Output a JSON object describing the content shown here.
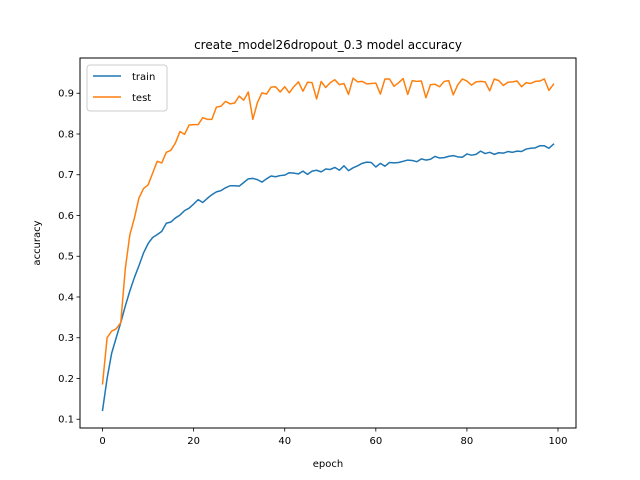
{
  "chart_data": {
    "type": "line",
    "title": "create_model26dropout_0.3 model accuracy",
    "xlabel": "epoch",
    "ylabel": "accuracy",
    "xlim": [
      -4.95,
      103.95
    ],
    "ylim": [
      0.0785,
      0.9865
    ],
    "xticks": [
      0,
      20,
      40,
      60,
      80,
      100
    ],
    "yticks": [
      0.1,
      0.2,
      0.3,
      0.4,
      0.5,
      0.6,
      0.7,
      0.8,
      0.9
    ],
    "grid": false,
    "legend_position": "top-left",
    "series": [
      {
        "name": "train",
        "color": "#1f77b4",
        "values": [
          0.122,
          0.2,
          0.262,
          0.3,
          0.337,
          0.378,
          0.415,
          0.448,
          0.477,
          0.508,
          0.531,
          0.546,
          0.553,
          0.561,
          0.581,
          0.584,
          0.594,
          0.601,
          0.612,
          0.618,
          0.628,
          0.639,
          0.632,
          0.642,
          0.651,
          0.658,
          0.661,
          0.668,
          0.673,
          0.673,
          0.672,
          0.681,
          0.69,
          0.691,
          0.688,
          0.682,
          0.69,
          0.697,
          0.695,
          0.698,
          0.699,
          0.705,
          0.704,
          0.702,
          0.709,
          0.701,
          0.709,
          0.711,
          0.707,
          0.714,
          0.713,
          0.718,
          0.711,
          0.722,
          0.71,
          0.717,
          0.722,
          0.728,
          0.731,
          0.73,
          0.719,
          0.728,
          0.721,
          0.73,
          0.729,
          0.73,
          0.733,
          0.736,
          0.735,
          0.732,
          0.739,
          0.736,
          0.738,
          0.745,
          0.741,
          0.742,
          0.745,
          0.747,
          0.744,
          0.743,
          0.751,
          0.748,
          0.75,
          0.758,
          0.752,
          0.755,
          0.75,
          0.754,
          0.753,
          0.757,
          0.755,
          0.758,
          0.757,
          0.763,
          0.765,
          0.766,
          0.771,
          0.771,
          0.765,
          0.775
        ]
      },
      {
        "name": "test",
        "color": "#ff7f0e",
        "values": [
          0.187,
          0.3,
          0.316,
          0.322,
          0.337,
          0.47,
          0.553,
          0.594,
          0.643,
          0.666,
          0.675,
          0.704,
          0.733,
          0.729,
          0.755,
          0.76,
          0.778,
          0.806,
          0.799,
          0.822,
          0.823,
          0.823,
          0.84,
          0.836,
          0.836,
          0.866,
          0.868,
          0.88,
          0.874,
          0.876,
          0.893,
          0.883,
          0.903,
          0.836,
          0.877,
          0.901,
          0.898,
          0.915,
          0.916,
          0.903,
          0.916,
          0.901,
          0.916,
          0.928,
          0.905,
          0.927,
          0.926,
          0.886,
          0.929,
          0.914,
          0.926,
          0.933,
          0.921,
          0.924,
          0.897,
          0.937,
          0.928,
          0.929,
          0.923,
          0.924,
          0.925,
          0.898,
          0.935,
          0.935,
          0.917,
          0.926,
          0.936,
          0.897,
          0.931,
          0.929,
          0.93,
          0.889,
          0.921,
          0.922,
          0.916,
          0.929,
          0.931,
          0.896,
          0.921,
          0.935,
          0.93,
          0.92,
          0.928,
          0.929,
          0.928,
          0.906,
          0.935,
          0.931,
          0.919,
          0.927,
          0.928,
          0.93,
          0.916,
          0.926,
          0.924,
          0.929,
          0.93,
          0.935,
          0.907,
          0.922
        ]
      }
    ]
  }
}
